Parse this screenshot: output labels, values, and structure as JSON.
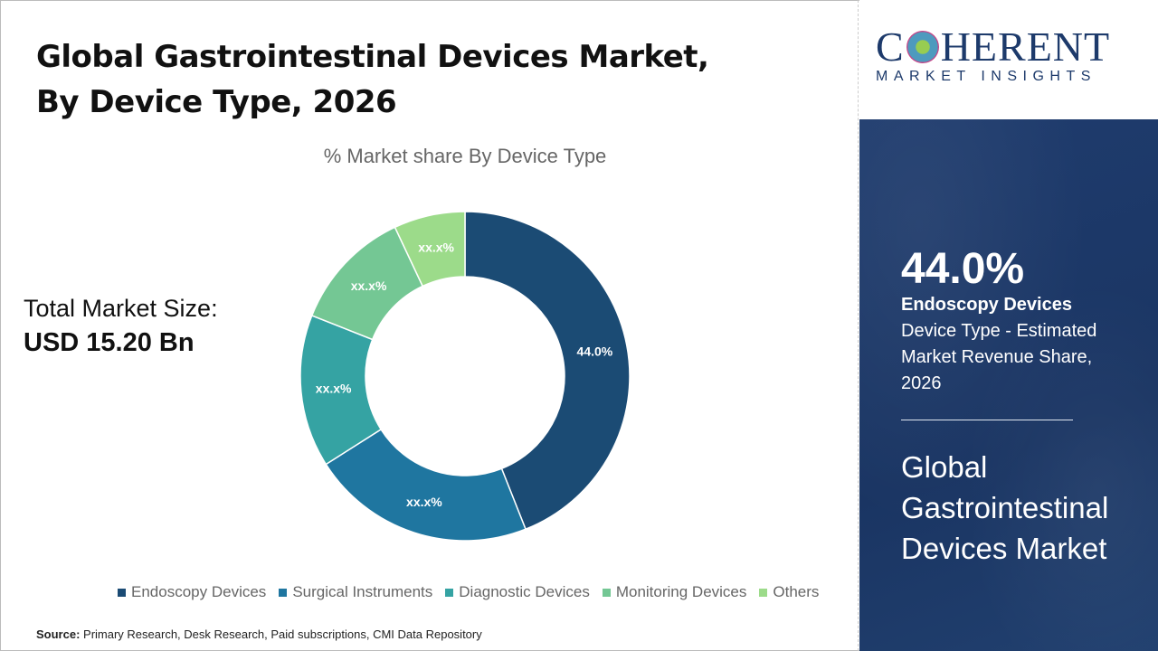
{
  "header": {
    "title": "Global Gastrointestinal Devices Market, By Device Type, 2026"
  },
  "total": {
    "label": "Total Market Size:",
    "value": "USD 15.20 Bn"
  },
  "source": {
    "label": "Source:",
    "text": "Primary Research, Desk Research, Paid subscriptions, CMI Data Repository"
  },
  "logo": {
    "main_left": "C",
    "main_right": "HERENT",
    "sub": "MARKET INSIGHTS"
  },
  "panel": {
    "percent": "44.0%",
    "segment": "Endoscopy Devices",
    "description": "Device Type - Estimated Market Revenue Share, 2026",
    "market": "Global Gastrointestinal Devices Market"
  },
  "chart_data": {
    "type": "pie",
    "donut": true,
    "title": "% Market share By Device Type",
    "categories": [
      "Endoscopy Devices",
      "Surgical Instruments",
      "Diagnostic Devices",
      "Monitoring Devices",
      "Others"
    ],
    "values": [
      44.0,
      22.0,
      15.0,
      12.0,
      7.0
    ],
    "data_labels": [
      "44.0%",
      "xx.x%",
      "xx.x%",
      "xx.x%",
      "xx.x%"
    ],
    "colors": [
      "#1b4b74",
      "#1f76a0",
      "#35a3a3",
      "#74c794",
      "#9cdb8a"
    ],
    "legend": "bottom"
  }
}
